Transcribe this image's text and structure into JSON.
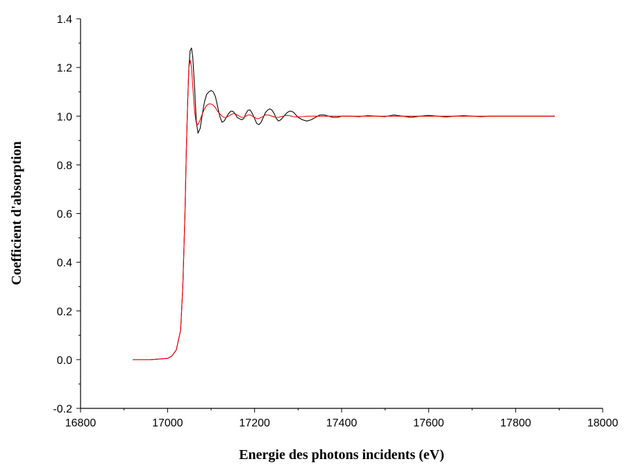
{
  "chart_data": {
    "type": "line",
    "title": "",
    "xlabel": "Energie des photons incidents (eV)",
    "ylabel": "Coefficient d'absorption",
    "xlim": [
      16800,
      18000
    ],
    "ylim": [
      -0.2,
      1.4
    ],
    "xticks": [
      "16800",
      "17000",
      "17200",
      "17400",
      "17600",
      "17800",
      "18000"
    ],
    "yticks": [
      "-0.2",
      "0.0",
      "0.2",
      "0.4",
      "0.6",
      "0.8",
      "1.0",
      "1.2",
      "1.4"
    ],
    "grid": false,
    "legend": "none",
    "series": [
      {
        "color": "#000000",
        "x": [
          16920,
          16960,
          17000,
          17010,
          17020,
          17030,
          17035,
          17040,
          17043,
          17046,
          17049,
          17052,
          17055,
          17058,
          17062,
          17066,
          17070,
          17075,
          17080,
          17085,
          17090,
          17095,
          17100,
          17105,
          17110,
          17115,
          17120,
          17125,
          17130,
          17135,
          17140,
          17145,
          17150,
          17155,
          17160,
          17165,
          17170,
          17175,
          17180,
          17185,
          17190,
          17195,
          17200,
          17205,
          17210,
          17215,
          17220,
          17225,
          17230,
          17235,
          17240,
          17245,
          17250,
          17255,
          17260,
          17265,
          17270,
          17275,
          17280,
          17285,
          17290,
          17295,
          17300,
          17310,
          17320,
          17330,
          17340,
          17350,
          17360,
          17370,
          17380,
          17390,
          17400,
          17420,
          17440,
          17460,
          17480,
          17500,
          17520,
          17540,
          17560,
          17580,
          17600,
          17620,
          17640,
          17660,
          17680,
          17700,
          17720,
          17740,
          17760,
          17780,
          17800,
          17820,
          17840,
          17860,
          17890
        ],
        "y": [
          0.0,
          0.0,
          0.005,
          0.015,
          0.04,
          0.12,
          0.3,
          0.6,
          0.85,
          1.05,
          1.2,
          1.27,
          1.28,
          1.24,
          1.12,
          0.98,
          0.93,
          0.95,
          1.01,
          1.06,
          1.09,
          1.1,
          1.105,
          1.1,
          1.08,
          1.04,
          1.0,
          0.975,
          0.98,
          0.995,
          1.01,
          1.02,
          1.02,
          1.01,
          0.995,
          0.99,
          0.985,
          0.99,
          1.01,
          1.025,
          1.025,
          1.01,
          0.99,
          0.97,
          0.965,
          0.975,
          0.995,
          1.015,
          1.025,
          1.03,
          1.025,
          1.01,
          0.99,
          0.98,
          0.985,
          0.995,
          1.005,
          1.015,
          1.02,
          1.02,
          1.015,
          1.005,
          0.995,
          0.985,
          0.98,
          0.985,
          0.995,
          1.005,
          1.005,
          1.0,
          0.995,
          0.995,
          1.0,
          1.0,
          0.998,
          1.002,
          1.0,
          0.998,
          1.005,
          1.0,
          0.995,
          1.0,
          1.003,
          1.0,
          0.997,
          1.0,
          1.002,
          1.0,
          0.998,
          1.0,
          1.0,
          1.0,
          1.0,
          1.0,
          1.0,
          1.0,
          1.0
        ]
      },
      {
        "color": "#ff0000",
        "x": [
          16920,
          16960,
          17000,
          17010,
          17020,
          17030,
          17035,
          17040,
          17043,
          17046,
          17049,
          17052,
          17055,
          17058,
          17062,
          17066,
          17070,
          17075,
          17080,
          17085,
          17090,
          17095,
          17100,
          17105,
          17110,
          17115,
          17120,
          17125,
          17130,
          17135,
          17140,
          17145,
          17150,
          17155,
          17160,
          17165,
          17170,
          17175,
          17180,
          17185,
          17190,
          17195,
          17200,
          17205,
          17210,
          17215,
          17220,
          17225,
          17230,
          17235,
          17240,
          17245,
          17250,
          17255,
          17260,
          17265,
          17270,
          17275,
          17280,
          17285,
          17290,
          17295,
          17300,
          17310,
          17320,
          17330,
          17340,
          17350,
          17360,
          17370,
          17380,
          17390,
          17400,
          17420,
          17440,
          17460,
          17480,
          17500,
          17520,
          17540,
          17560,
          17580,
          17600,
          17620,
          17640,
          17660,
          17680,
          17700,
          17720,
          17740,
          17760,
          17780,
          17800,
          17820,
          17840,
          17860,
          17890
        ],
        "y": [
          0.0,
          0.0,
          0.005,
          0.015,
          0.04,
          0.12,
          0.3,
          0.6,
          0.85,
          1.05,
          1.2,
          1.23,
          1.2,
          1.12,
          1.02,
          0.97,
          0.965,
          0.985,
          1.01,
          1.03,
          1.045,
          1.05,
          1.05,
          1.045,
          1.035,
          1.02,
          1.01,
          1.0,
          0.995,
          0.995,
          1.0,
          1.005,
          1.01,
          1.01,
          1.005,
          1.0,
          0.995,
          0.995,
          1.0,
          1.005,
          1.005,
          1.0,
          0.995,
          0.99,
          0.99,
          0.995,
          1.0,
          1.005,
          1.005,
          1.003,
          1.0,
          0.997,
          0.995,
          0.995,
          0.998,
          1.0,
          1.002,
          1.003,
          1.002,
          1.0,
          0.998,
          0.997,
          0.997,
          0.998,
          1.0,
          1.0,
          1.0,
          1.0,
          1.0,
          1.0,
          1.0,
          1.0,
          1.0,
          1.0,
          1.0,
          1.0,
          1.0,
          1.0,
          1.0,
          1.0,
          1.0,
          1.0,
          1.0,
          1.0,
          1.0,
          1.0,
          1.0,
          1.0,
          1.0,
          1.0,
          1.0,
          1.0,
          1.0,
          1.0,
          1.0,
          1.0,
          1.0
        ]
      }
    ]
  }
}
